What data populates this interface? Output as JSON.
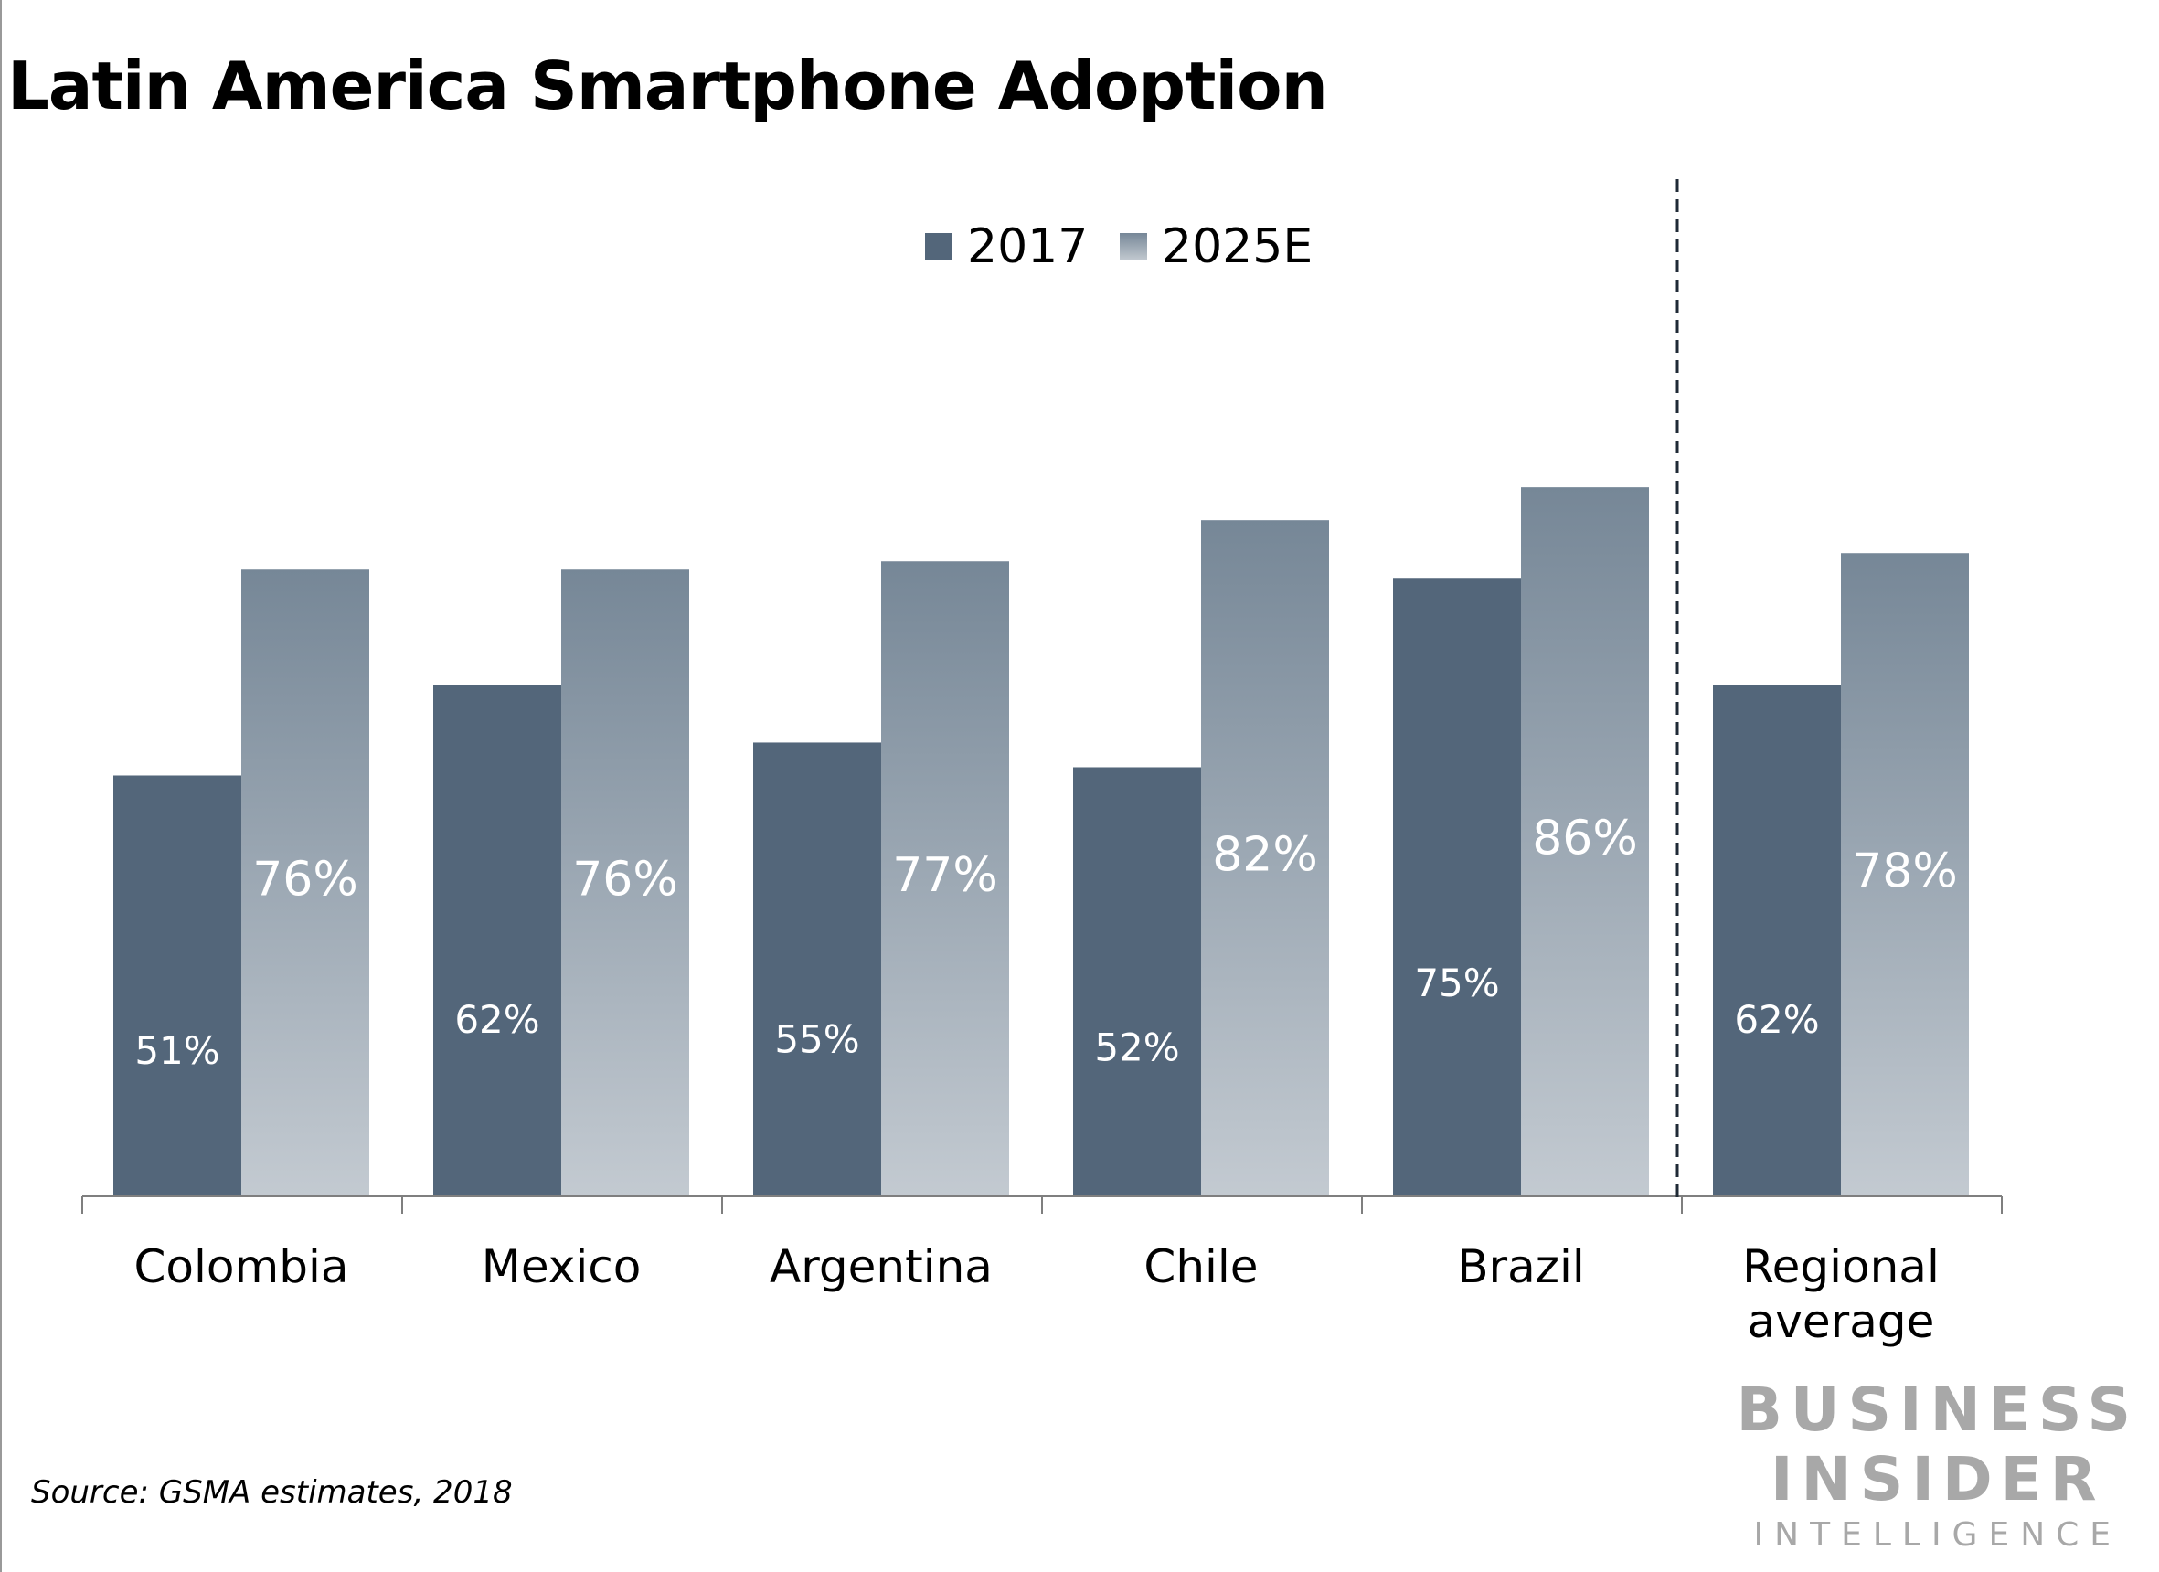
{
  "chart_data": {
    "type": "bar",
    "title": "Latin America Smartphone Adoption",
    "categories": [
      "Colombia",
      "Mexico",
      "Argentina",
      "Chile",
      "Brazil",
      "Regional average"
    ],
    "series": [
      {
        "name": "2017",
        "values": [
          51,
          62,
          55,
          52,
          75,
          62
        ],
        "labels": [
          "51%",
          "62%",
          "55%",
          "52%",
          "75%",
          "62%"
        ],
        "color": "#53667a"
      },
      {
        "name": "2025E",
        "values": [
          76,
          76,
          77,
          82,
          86,
          78
        ],
        "labels": [
          "76%",
          "76%",
          "77%",
          "82%",
          "86%",
          "78%"
        ],
        "color": "#768797"
      }
    ],
    "ylim": [
      0,
      100
    ],
    "grid": false,
    "legend_position": "top-center",
    "separator_before": "Regional average",
    "source": "Source: GSMA estimates, 2018",
    "brand": [
      "BUSINESS",
      "INSIDER",
      "INTELLIGENCE"
    ]
  }
}
